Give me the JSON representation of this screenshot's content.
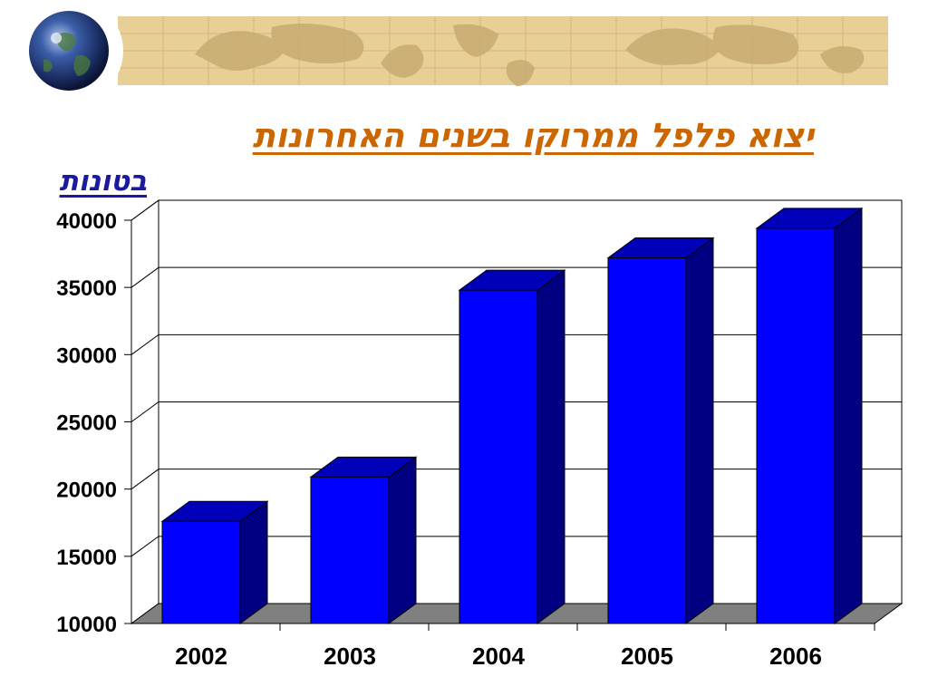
{
  "slide": {
    "title": "יצוא פלפל ממרוקו בשנים האחרונות",
    "banner_icon": "globe-icon",
    "banner_background": "world-map-parchment"
  },
  "chart_data": {
    "type": "bar",
    "style": "3d",
    "title": "יצוא פלפל ממרוקו בשנים האחרונות",
    "ylabel": "בטונות",
    "xlabel": "",
    "categories": [
      "2002",
      "2003",
      "2004",
      "2005",
      "2006"
    ],
    "values": [
      17600,
      20900,
      34800,
      37200,
      39400
    ],
    "ylim": [
      10000,
      40000
    ],
    "yticks": [
      "40000",
      "35000",
      "30000",
      "25000",
      "20000",
      "15000",
      "10000"
    ],
    "grid": true,
    "legend": "none",
    "colors": {
      "bar_front": "#0000ff",
      "bar_top": "#0000b8",
      "bar_side": "#000080",
      "floor": "#808080",
      "title": "#cc6600",
      "unit_label": "#1a1aa0"
    }
  }
}
